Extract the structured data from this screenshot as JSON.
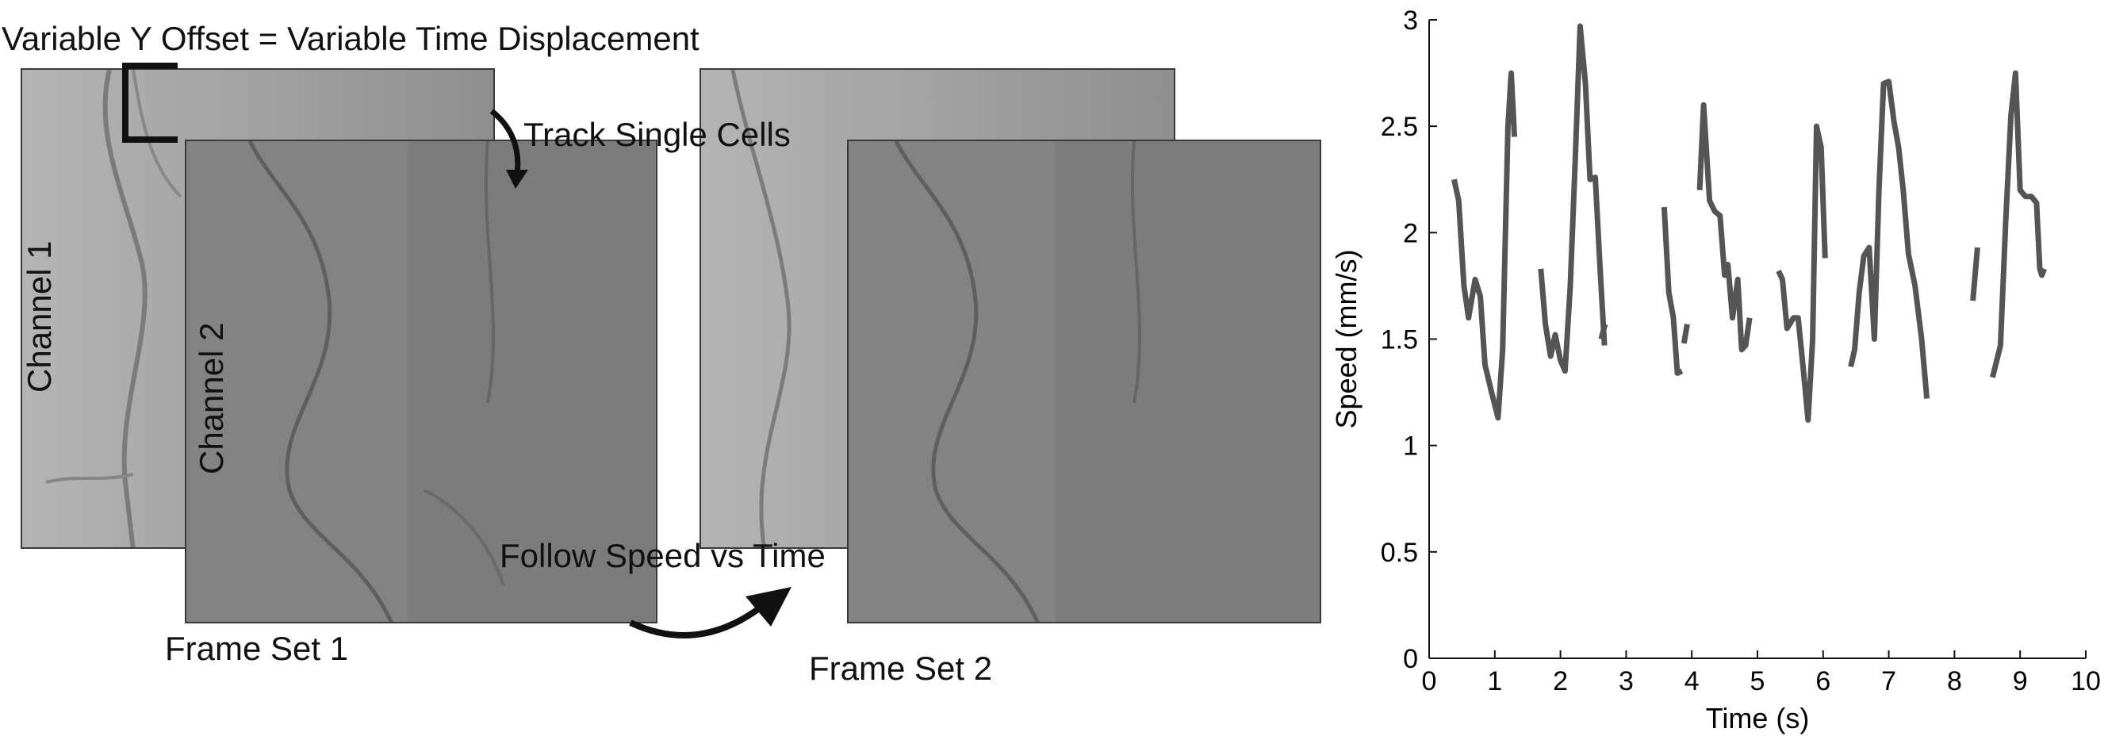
{
  "diagram": {
    "title": "Variable Y Offset = Variable Time Displacement",
    "track_label": "Track Single Cells",
    "follow_label": "Follow Speed vs Time",
    "channel1_label": "Channel 1",
    "channel2_label": "Channel 2",
    "frameset1_label": "Frame Set 1",
    "frameset2_label": "Frame Set 2"
  },
  "chart_data": {
    "type": "line",
    "title": "",
    "xlabel": "Time (s)",
    "ylabel": "Speed (mm/s)",
    "xlim": [
      0,
      10
    ],
    "ylim": [
      0,
      3
    ],
    "xticks": [
      "0",
      "1",
      "2",
      "3",
      "4",
      "5",
      "6",
      "7",
      "8",
      "9",
      "10"
    ],
    "yticks": [
      "0",
      "0.5",
      "1",
      "1.5",
      "2",
      "2.5",
      "3"
    ],
    "grid": false,
    "color": "#555555",
    "segments": [
      {
        "x": [
          0.38,
          0.45,
          0.53,
          0.6,
          0.7,
          0.78,
          0.85,
          0.95,
          1.05,
          1.12,
          1.2,
          1.25,
          1.3
        ],
        "y": [
          2.25,
          2.15,
          1.75,
          1.6,
          1.78,
          1.7,
          1.38,
          1.25,
          1.13,
          1.45,
          2.5,
          2.75,
          2.45
        ]
      },
      {
        "x": [
          1.7,
          1.77,
          1.85,
          1.92,
          2.0,
          2.07,
          2.15,
          2.22,
          2.3,
          2.38,
          2.45,
          2.53,
          2.6,
          2.67
        ],
        "y": [
          1.83,
          1.57,
          1.42,
          1.52,
          1.4,
          1.35,
          1.75,
          2.3,
          2.97,
          2.7,
          2.25,
          2.26,
          1.85,
          1.47
        ]
      },
      {
        "x": [
          2.62,
          2.68
        ],
        "y": [
          1.5,
          1.57
        ]
      },
      {
        "x": [
          3.58,
          3.65,
          3.72,
          3.78,
          3.85
        ],
        "y": [
          2.12,
          1.72,
          1.6,
          1.34,
          1.35
        ]
      },
      {
        "x": [
          3.88,
          3.93
        ],
        "y": [
          1.48,
          1.57
        ]
      },
      {
        "x": [
          4.12,
          4.18,
          4.27,
          4.35,
          4.43,
          4.5,
          4.55,
          4.62,
          4.7,
          4.76,
          4.82,
          4.88
        ],
        "y": [
          2.2,
          2.6,
          2.15,
          2.1,
          2.08,
          1.8,
          1.85,
          1.6,
          1.78,
          1.45,
          1.47,
          1.6
        ]
      },
      {
        "x": [
          5.32,
          5.38,
          5.45,
          5.55,
          5.62,
          5.7,
          5.77,
          5.84,
          5.9,
          5.97,
          6.03
        ],
        "y": [
          1.82,
          1.78,
          1.55,
          1.6,
          1.6,
          1.35,
          1.12,
          1.5,
          2.5,
          2.4,
          1.88
        ]
      },
      {
        "x": [
          6.42,
          6.48,
          6.55,
          6.62,
          6.7,
          6.78,
          6.85,
          6.92,
          7.0,
          7.08,
          7.15,
          7.22,
          7.3,
          7.4,
          7.5,
          7.58
        ],
        "y": [
          1.37,
          1.45,
          1.72,
          1.89,
          1.93,
          1.5,
          2.2,
          2.7,
          2.71,
          2.52,
          2.4,
          2.2,
          1.9,
          1.75,
          1.5,
          1.22
        ]
      },
      {
        "x": [
          8.28,
          8.35
        ],
        "y": [
          1.68,
          1.93
        ]
      },
      {
        "x": [
          8.58,
          8.7,
          8.78,
          8.86,
          8.93,
          9.0,
          9.08,
          9.17,
          9.25,
          9.3,
          9.33,
          9.37
        ],
        "y": [
          1.32,
          1.47,
          2.05,
          2.55,
          2.75,
          2.2,
          2.17,
          2.17,
          2.14,
          1.83,
          1.8,
          1.83
        ]
      }
    ]
  }
}
